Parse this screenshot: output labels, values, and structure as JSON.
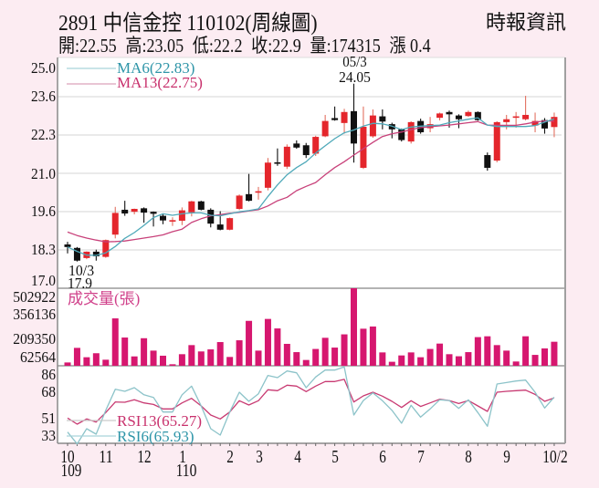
{
  "header": {
    "title": "2891  中信金控 110102(周線圖)",
    "source": "時報資訊",
    "stats": [
      {
        "label": "開",
        "value": "22.55",
        "text": "開:22.55"
      },
      {
        "label": "高",
        "value": "23.05",
        "text": "高:23.05"
      },
      {
        "label": "低",
        "value": "22.2",
        "text": "低:22.2"
      },
      {
        "label": "收",
        "value": "22.9",
        "text": "收:22.9"
      },
      {
        "label": "量",
        "value": "174315",
        "text": "量:174315"
      },
      {
        "label": "漲",
        "value": "0.4",
        "text": "漲 0.4"
      }
    ]
  },
  "colors": {
    "background": "#fcecf2",
    "up_candle": "#e4262c",
    "up_wick": "#e37060",
    "down_candle": "#111111",
    "ma6": "#4fa9b9",
    "ma13": "#c8417a",
    "ma6_label": "#2e95a8",
    "ma13_label": "#c8306c",
    "volume": "#d6176f",
    "volume_label": "#d0408a",
    "rsi6": "#8cc3c9",
    "rsi13": "#c83a72",
    "grid": "#e4e4e4",
    "axis": "#8a8a8a"
  },
  "chart_data": {
    "type": "candlestick",
    "title": "2891 中信金控 110102(周線圖)",
    "period": "weekly",
    "x_labels": [
      "10",
      "11",
      "12",
      "1",
      "2",
      "3",
      "4",
      "5",
      "6",
      "7",
      "8",
      "9",
      "10/2"
    ],
    "year_labels": [
      {
        "text": "109",
        "under": "10"
      },
      {
        "text": "110",
        "under": "1"
      }
    ],
    "price": {
      "ylim": [
        17.0,
        25.0
      ],
      "ticks": [
        "25.0",
        "23.6",
        "22.3",
        "21.0",
        "19.6",
        "18.3",
        "17.0"
      ],
      "legend": [
        {
          "name": "MA6",
          "text": "MA6(22.83)",
          "value": 22.83
        },
        {
          "name": "MA13",
          "text": "MA13(22.75)",
          "value": 22.75
        }
      ],
      "annotations": [
        {
          "index": 30,
          "lines": [
            "05/3",
            "24.05"
          ],
          "position": "above-high"
        },
        {
          "index": 1,
          "lines": [
            "10/3",
            "17.9"
          ],
          "position": "below-low"
        }
      ],
      "ohlc": [
        [
          18.49,
          18.58,
          18.18,
          18.4
        ],
        [
          18.37,
          18.4,
          17.9,
          17.93
        ],
        [
          18.02,
          18.25,
          17.98,
          18.24
        ],
        [
          18.24,
          18.31,
          17.93,
          18.08
        ],
        [
          18.06,
          18.66,
          18.03,
          18.64
        ],
        [
          18.83,
          19.79,
          18.7,
          19.58
        ],
        [
          19.69,
          20.0,
          19.48,
          19.56
        ],
        [
          19.62,
          19.73,
          19.53,
          19.72
        ],
        [
          19.74,
          19.77,
          19.24,
          19.59
        ],
        [
          19.62,
          19.63,
          19.11,
          19.55
        ],
        [
          19.48,
          19.55,
          19.19,
          19.32
        ],
        [
          19.32,
          19.43,
          19.13,
          19.33
        ],
        [
          19.31,
          19.77,
          19.16,
          19.67
        ],
        [
          19.6,
          20.0,
          19.46,
          19.98
        ],
        [
          19.98,
          20.0,
          19.67,
          19.69
        ],
        [
          19.69,
          19.74,
          19.08,
          19.21
        ],
        [
          19.18,
          19.64,
          18.98,
          19.0
        ],
        [
          19.0,
          19.42,
          18.98,
          19.4
        ],
        [
          19.72,
          20.22,
          19.68,
          20.18
        ],
        [
          20.23,
          20.93,
          19.98,
          20.0
        ],
        [
          20.3,
          20.48,
          20.04,
          20.33
        ],
        [
          20.45,
          21.48,
          20.36,
          21.32
        ],
        [
          21.33,
          21.81,
          21.21,
          21.3
        ],
        [
          21.18,
          21.95,
          21.1,
          21.87
        ],
        [
          21.98,
          22.09,
          21.8,
          21.84
        ],
        [
          21.92,
          22.0,
          21.48,
          21.58
        ],
        [
          21.63,
          22.25,
          21.55,
          22.21
        ],
        [
          22.23,
          22.97,
          22.2,
          22.76
        ],
        [
          22.86,
          23.26,
          22.77,
          22.79
        ],
        [
          22.69,
          23.18,
          22.32,
          23.07
        ],
        [
          23.1,
          24.05,
          21.32,
          21.98
        ],
        [
          21.14,
          23.26,
          21.1,
          22.56
        ],
        [
          22.23,
          23.16,
          22.18,
          22.95
        ],
        [
          22.92,
          23.16,
          22.47,
          22.74
        ],
        [
          22.65,
          22.7,
          22.16,
          22.47
        ],
        [
          22.47,
          22.5,
          22.05,
          22.1
        ],
        [
          22.05,
          22.75,
          21.98,
          22.72
        ],
        [
          22.76,
          22.84,
          22.32,
          22.37
        ],
        [
          22.51,
          22.9,
          22.37,
          22.65
        ],
        [
          22.87,
          23.05,
          22.78,
          23.02
        ],
        [
          23.07,
          23.12,
          22.53,
          22.99
        ],
        [
          22.95,
          22.99,
          22.51,
          22.82
        ],
        [
          22.93,
          23.12,
          22.9,
          23.07
        ],
        [
          23.07,
          23.09,
          22.77,
          22.79
        ],
        [
          21.58,
          21.67,
          21.04,
          21.14
        ],
        [
          21.39,
          22.75,
          21.33,
          22.72
        ],
        [
          22.72,
          22.97,
          22.47,
          22.82
        ],
        [
          22.87,
          23.07,
          22.53,
          22.92
        ],
        [
          22.82,
          23.63,
          22.78,
          22.97
        ],
        [
          22.6,
          23.05,
          22.37,
          22.76
        ],
        [
          22.79,
          22.86,
          22.32,
          22.5
        ],
        [
          22.55,
          23.05,
          22.2,
          22.9
        ]
      ],
      "ma6": [
        18.4,
        18.25,
        18.12,
        18.11,
        18.2,
        18.42,
        18.7,
        18.9,
        19.15,
        19.42,
        19.55,
        19.5,
        19.55,
        19.58,
        19.58,
        19.5,
        19.48,
        19.55,
        19.62,
        19.66,
        19.72,
        20.15,
        20.55,
        20.9,
        21.15,
        21.35,
        21.65,
        21.9,
        22.15,
        22.35,
        22.45,
        22.58,
        22.68,
        22.66,
        22.58,
        22.46,
        22.55,
        22.58,
        22.6,
        22.62,
        22.7,
        22.76,
        22.82,
        22.87,
        22.62,
        22.57,
        22.57,
        22.57,
        22.57,
        22.6,
        22.72,
        22.83
      ],
      "ma13": [
        18.92,
        18.8,
        18.71,
        18.64,
        18.58,
        18.59,
        18.61,
        18.66,
        18.71,
        18.76,
        18.82,
        18.93,
        19.02,
        19.25,
        19.38,
        19.48,
        19.52,
        19.57,
        19.6,
        19.65,
        19.69,
        19.82,
        20.0,
        20.12,
        20.35,
        20.5,
        20.63,
        20.9,
        21.15,
        21.35,
        21.58,
        21.8,
        22.02,
        22.22,
        22.32,
        22.38,
        22.46,
        22.53,
        22.56,
        22.59,
        22.62,
        22.66,
        22.7,
        22.74,
        22.62,
        22.61,
        22.61,
        22.61,
        22.66,
        22.72,
        22.76,
        22.75
      ]
    },
    "volume": {
      "label": "成交量(張)",
      "unit": "張",
      "ticks": [
        "502922",
        "356136",
        "209350",
        "62564"
      ],
      "values": [
        24000,
        130000,
        62000,
        91000,
        44000,
        344000,
        205000,
        68000,
        200000,
        110000,
        73000,
        11000,
        84000,
        150000,
        104000,
        119000,
        172000,
        64000,
        185000,
        326000,
        110000,
        340000,
        271000,
        159000,
        99000,
        42000,
        122000,
        203000,
        132000,
        228000,
        563000,
        269000,
        285000,
        97000,
        29000,
        75000,
        97000,
        62000,
        122000,
        161000,
        84000,
        69000,
        99000,
        208000,
        214000,
        150000,
        110000,
        31000,
        214000,
        79000,
        126000,
        174315
      ]
    },
    "rsi": {
      "ticks": [
        "86",
        "68",
        "51",
        "33"
      ],
      "legend": [
        {
          "name": "RSI13",
          "text": "RSI13(65.27)",
          "value": 65.27
        },
        {
          "name": "RSI6",
          "text": "RSI6(65.93)",
          "value": 65.93
        }
      ],
      "rsi13": [
        47.8,
        42.5,
        47.0,
        44.3,
        52.5,
        61.7,
        61.5,
        63.6,
        60.9,
        59.6,
        55.7,
        55.7,
        60.9,
        64.9,
        58.3,
        50.4,
        47.0,
        53.0,
        62.8,
        59.1,
        62.8,
        72.3,
        71.5,
        76.3,
        75.5,
        70.7,
        75.5,
        79.4,
        79.4,
        81.3,
        61.7,
        67.0,
        70.2,
        66.8,
        62.3,
        57.0,
        62.8,
        57.8,
        60.9,
        64.1,
        63.0,
        60.4,
        63.0,
        58.3,
        53.6,
        70.2,
        71.0,
        71.5,
        72.0,
        68.3,
        62.3,
        65.27
      ],
      "rsi6": [
        35.6,
        25.3,
        38.5,
        33.8,
        54.4,
        72.8,
        71.0,
        74.1,
        68.0,
        65.7,
        53.0,
        53.0,
        68.0,
        75.5,
        58.3,
        38.5,
        33.0,
        53.0,
        70.2,
        62.3,
        68.8,
        84.7,
        82.8,
        88.6,
        87.0,
        74.1,
        83.4,
        89.4,
        89.4,
        92.1,
        50.4,
        63.0,
        69.6,
        62.8,
        54.4,
        43.3,
        58.9,
        48.6,
        55.7,
        63.6,
        63.0,
        56.2,
        63.6,
        52.5,
        40.7,
        77.3,
        78.6,
        79.9,
        80.7,
        70.2,
        56.5,
        65.93
      ]
    }
  }
}
